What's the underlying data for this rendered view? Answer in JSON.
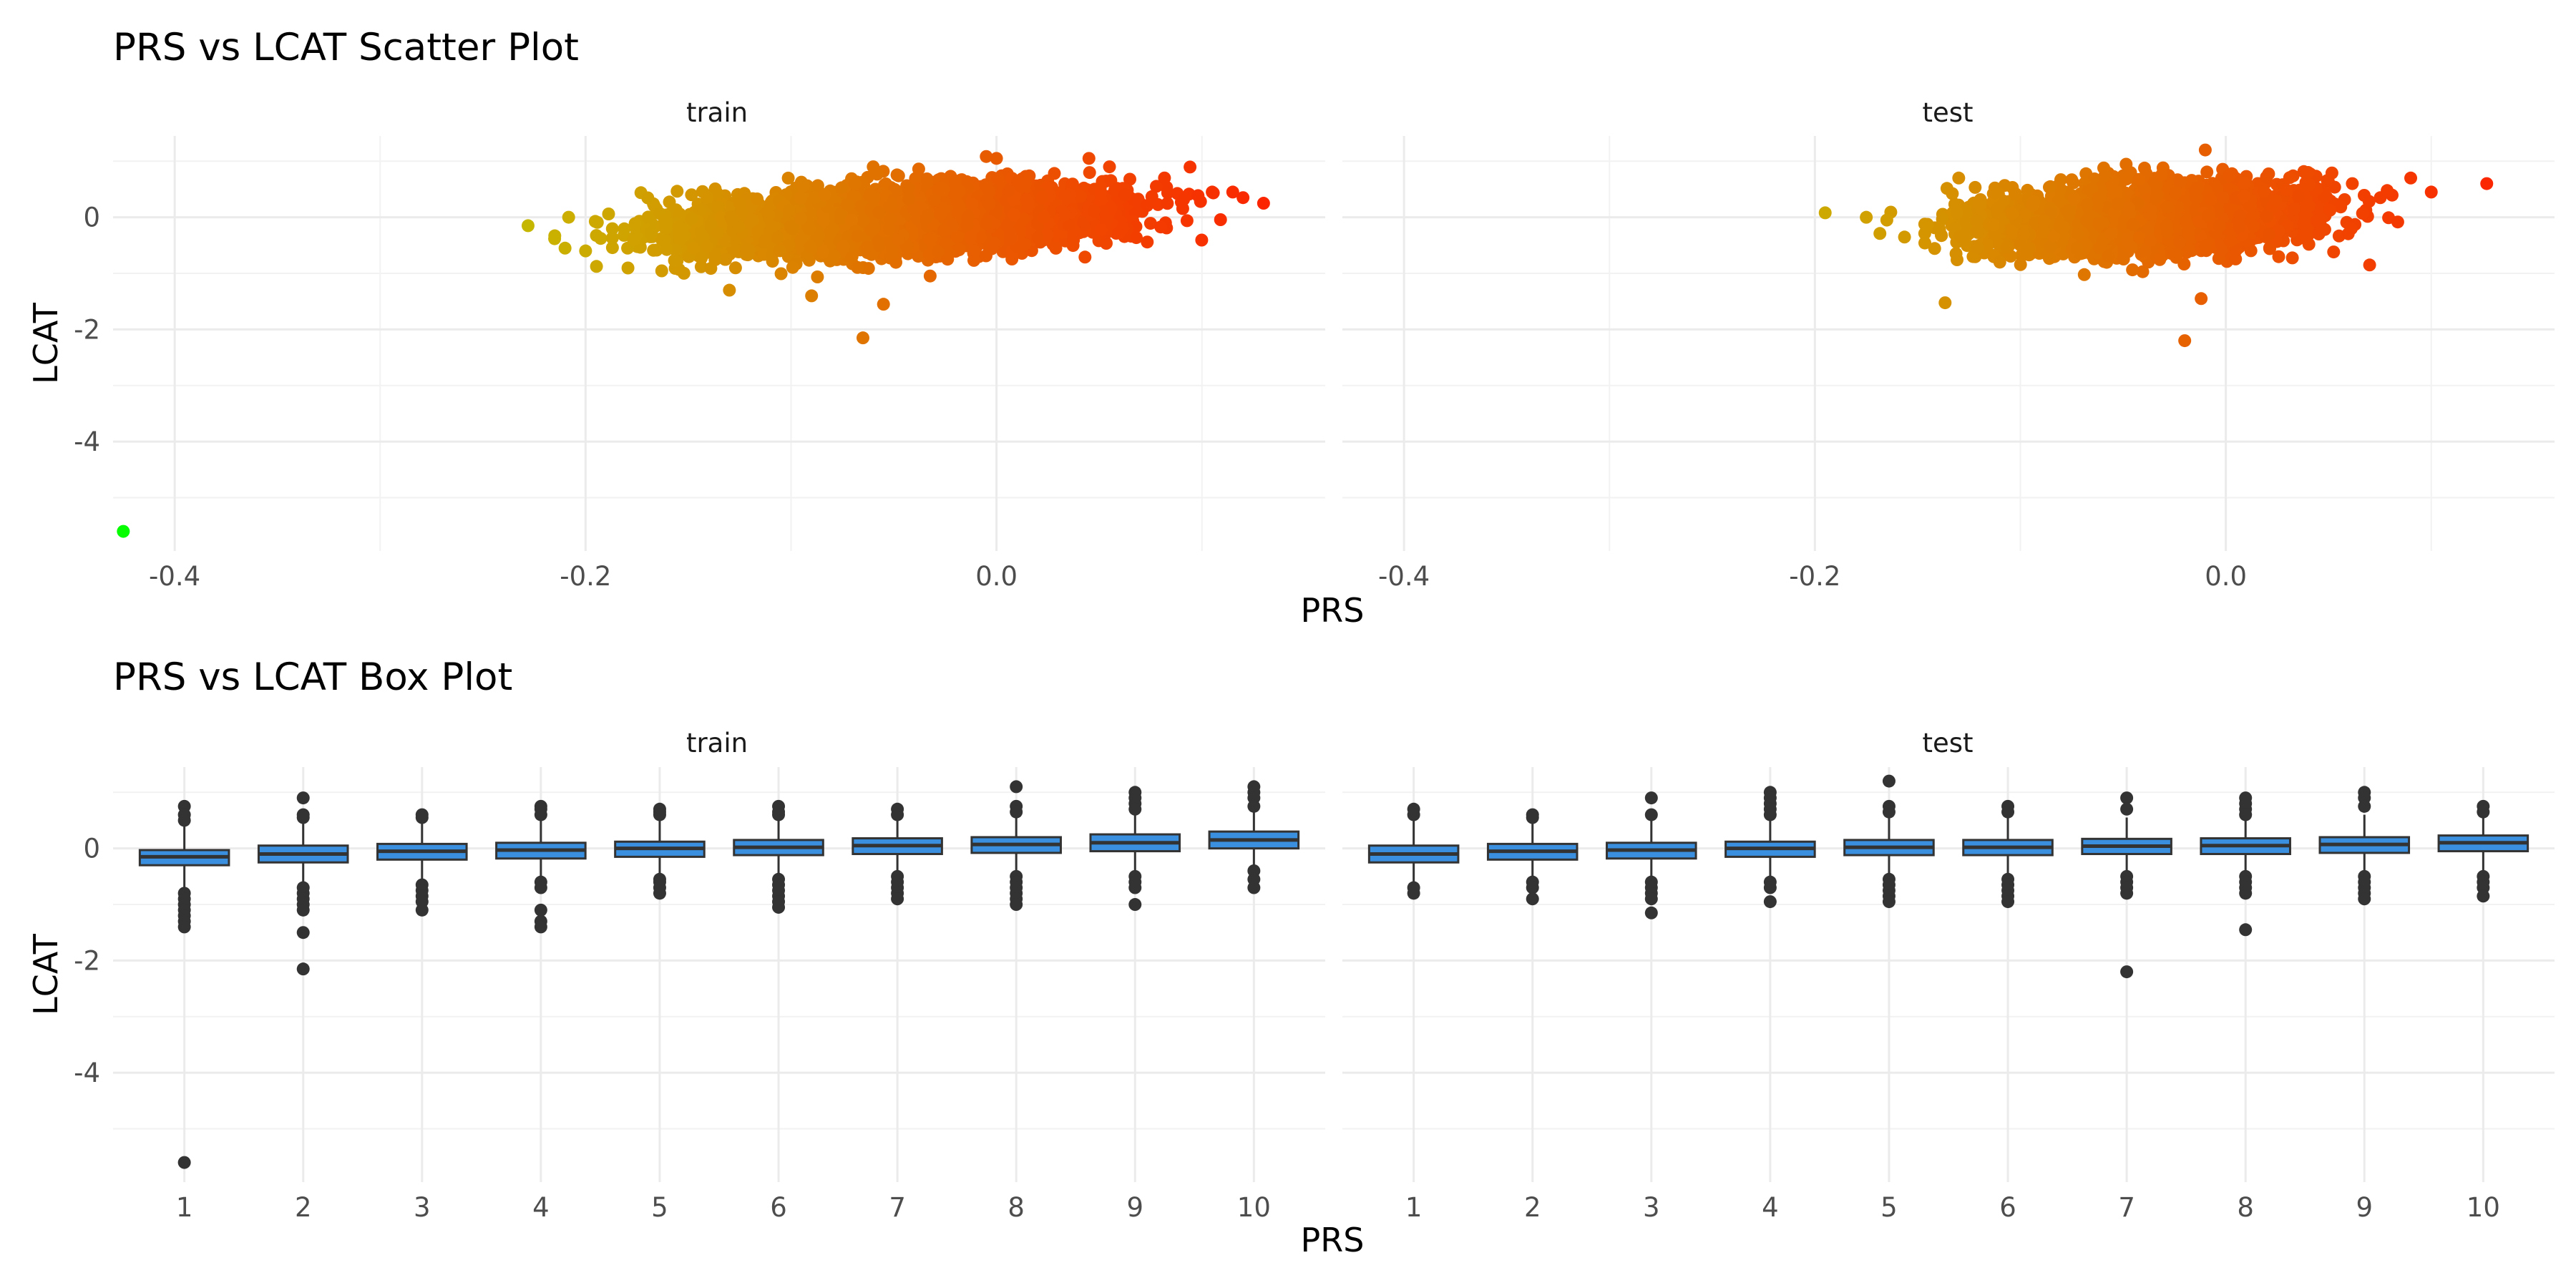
{
  "chart_data": [
    {
      "type": "scatter",
      "title": "PRS vs LCAT Scatter Plot",
      "xlabel": "PRS",
      "ylabel": "LCAT",
      "facets": [
        "train",
        "test"
      ],
      "xlim": [
        -0.43,
        0.16
      ],
      "ylim": [
        -5.95,
        1.45
      ],
      "x_ticks": [
        -0.4,
        -0.2,
        0.0
      ],
      "x_tick_labels": [
        "-0.4",
        "-0.2",
        "0.0"
      ],
      "y_ticks": [
        -4,
        -2,
        0
      ],
      "y_tick_labels": [
        "-4",
        "-2",
        "0"
      ],
      "grid": true,
      "color_scale": {
        "low": "#00ff00",
        "mid": "#c9b400",
        "high": "#ff1a00",
        "mapped_to": "PRS"
      },
      "series": [
        {
          "facet": "train",
          "cloud": {
            "x_range": [
              -0.23,
              0.13
            ],
            "y_center_at_x_min": -0.35,
            "y_center_at_x_max": 0.25,
            "y_spread": 0.28,
            "n": 3800
          },
          "points": [
            [
              -0.425,
              -5.6
            ],
            [
              -0.228,
              -0.15
            ],
            [
              -0.215,
              -0.33
            ],
            [
              -0.21,
              -0.55
            ],
            [
              -0.2,
              -0.6
            ],
            [
              -0.065,
              -2.15
            ],
            [
              -0.055,
              -1.55
            ],
            [
              -0.13,
              -1.3
            ],
            [
              -0.09,
              -1.4
            ],
            [
              0.0,
              1.05
            ],
            [
              0.045,
              1.05
            ],
            [
              0.055,
              0.9
            ],
            [
              -0.06,
              0.9
            ],
            [
              0.105,
              0.45
            ],
            [
              0.115,
              0.45
            ],
            [
              0.12,
              0.35
            ],
            [
              0.13,
              0.25
            ]
          ]
        },
        {
          "facet": "test",
          "cloud": {
            "x_range": [
              -0.18,
              0.1
            ],
            "y_center_at_x_min": -0.25,
            "y_center_at_x_max": 0.2,
            "y_spread": 0.28,
            "n": 3200
          },
          "points": [
            [
              -0.195,
              0.08
            ],
            [
              -0.175,
              0.0
            ],
            [
              -0.165,
              -0.05
            ],
            [
              -0.02,
              -2.2
            ],
            [
              -0.012,
              -1.45
            ],
            [
              -0.01,
              1.2
            ],
            [
              -0.12,
              0.25
            ],
            [
              -0.13,
              0.7
            ],
            [
              -0.11,
              -0.8
            ],
            [
              0.07,
              -0.85
            ],
            [
              0.04,
              0.8
            ],
            [
              0.09,
              0.7
            ],
            [
              0.1,
              0.45
            ],
            [
              0.127,
              0.6
            ]
          ]
        }
      ]
    },
    {
      "type": "box",
      "title": "PRS vs LCAT Box Plot",
      "xlabel": "PRS",
      "ylabel": "LCAT",
      "facets": [
        "train",
        "test"
      ],
      "categories": [
        "1",
        "2",
        "3",
        "4",
        "5",
        "6",
        "7",
        "8",
        "9",
        "10"
      ],
      "ylim": [
        -5.95,
        1.45
      ],
      "y_ticks": [
        -4,
        -2,
        0
      ],
      "y_tick_labels": [
        "-4",
        "-2",
        "0"
      ],
      "box_fill": "#3a8fde",
      "box_stroke": "#333333",
      "series": [
        {
          "facet": "train",
          "boxes": [
            {
              "q1": -0.3,
              "median": -0.15,
              "q3": -0.03,
              "lower": -0.7,
              "upper": 0.45,
              "outliers": [
                0.75,
                0.6,
                0.5,
                -0.8,
                -0.9,
                -1.0,
                -1.1,
                -1.2,
                -1.3,
                -1.4,
                -5.6
              ]
            },
            {
              "q1": -0.25,
              "median": -0.1,
              "q3": 0.05,
              "lower": -0.6,
              "upper": 0.5,
              "outliers": [
                0.9,
                0.6,
                0.55,
                -0.7,
                -0.8,
                -0.9,
                -1.0,
                -1.1,
                -1.5,
                -2.15
              ]
            },
            {
              "q1": -0.2,
              "median": -0.05,
              "q3": 0.08,
              "lower": -0.55,
              "upper": 0.5,
              "outliers": [
                0.6,
                0.55,
                -0.65,
                -0.75,
                -0.85,
                -0.95,
                -1.1
              ]
            },
            {
              "q1": -0.18,
              "median": -0.03,
              "q3": 0.1,
              "lower": -0.55,
              "upper": 0.55,
              "outliers": [
                0.75,
                0.7,
                0.6,
                -0.6,
                -0.7,
                -1.1,
                -1.3,
                -1.4
              ]
            },
            {
              "q1": -0.15,
              "median": 0.0,
              "q3": 0.12,
              "lower": -0.5,
              "upper": 0.55,
              "outliers": [
                0.7,
                0.65,
                0.6,
                -0.55,
                -0.6,
                -0.7,
                -0.8
              ]
            },
            {
              "q1": -0.12,
              "median": 0.02,
              "q3": 0.15,
              "lower": -0.5,
              "upper": 0.55,
              "outliers": [
                0.75,
                0.65,
                0.6,
                -0.55,
                -0.65,
                -0.75,
                -0.85,
                -0.95,
                -1.05
              ]
            },
            {
              "q1": -0.1,
              "median": 0.05,
              "q3": 0.18,
              "lower": -0.45,
              "upper": 0.55,
              "outliers": [
                0.7,
                0.6,
                -0.5,
                -0.6,
                -0.7,
                -0.8,
                -0.9
              ]
            },
            {
              "q1": -0.08,
              "median": 0.07,
              "q3": 0.2,
              "lower": -0.45,
              "upper": 0.6,
              "outliers": [
                1.1,
                0.75,
                0.65,
                -0.5,
                -0.6,
                -0.7,
                -0.8,
                -0.9,
                -1.0
              ]
            },
            {
              "q1": -0.05,
              "median": 0.1,
              "q3": 0.25,
              "lower": -0.4,
              "upper": 0.6,
              "outliers": [
                1.0,
                0.9,
                0.8,
                0.7,
                -0.5,
                -0.6,
                -0.7,
                -1.0
              ]
            },
            {
              "q1": 0.0,
              "median": 0.15,
              "q3": 0.3,
              "lower": -0.35,
              "upper": 0.65,
              "outliers": [
                1.1,
                1.0,
                0.9,
                0.75,
                -0.4,
                -0.55,
                -0.7
              ]
            }
          ]
        },
        {
          "facet": "test",
          "boxes": [
            {
              "q1": -0.25,
              "median": -0.1,
              "q3": 0.05,
              "lower": -0.65,
              "upper": 0.55,
              "outliers": [
                0.7,
                0.6,
                -0.7,
                -0.8
              ]
            },
            {
              "q1": -0.2,
              "median": -0.05,
              "q3": 0.08,
              "lower": -0.55,
              "upper": 0.5,
              "outliers": [
                0.6,
                0.55,
                -0.6,
                -0.7,
                -0.9
              ]
            },
            {
              "q1": -0.18,
              "median": -0.03,
              "q3": 0.1,
              "lower": -0.55,
              "upper": 0.55,
              "outliers": [
                0.9,
                0.6,
                -0.6,
                -0.7,
                -0.8,
                -0.9,
                -1.15
              ]
            },
            {
              "q1": -0.15,
              "median": 0.0,
              "q3": 0.12,
              "lower": -0.55,
              "upper": 0.55,
              "outliers": [
                1.0,
                0.9,
                0.8,
                0.7,
                0.6,
                -0.6,
                -0.7,
                -0.95
              ]
            },
            {
              "q1": -0.12,
              "median": 0.02,
              "q3": 0.15,
              "lower": -0.5,
              "upper": 0.6,
              "outliers": [
                1.2,
                0.75,
                0.65,
                -0.55,
                -0.65,
                -0.75,
                -0.85,
                -0.95
              ]
            },
            {
              "q1": -0.12,
              "median": 0.02,
              "q3": 0.15,
              "lower": -0.5,
              "upper": 0.55,
              "outliers": [
                0.75,
                0.65,
                -0.55,
                -0.65,
                -0.75,
                -0.85,
                -0.95
              ]
            },
            {
              "q1": -0.1,
              "median": 0.04,
              "q3": 0.17,
              "lower": -0.45,
              "upper": 0.55,
              "outliers": [
                0.9,
                0.7,
                -0.5,
                -0.6,
                -0.7,
                -0.8,
                -2.2
              ]
            },
            {
              "q1": -0.1,
              "median": 0.05,
              "q3": 0.18,
              "lower": -0.45,
              "upper": 0.55,
              "outliers": [
                0.9,
                0.8,
                0.7,
                0.6,
                -0.5,
                -0.6,
                -0.7,
                -0.8,
                -1.45
              ]
            },
            {
              "q1": -0.08,
              "median": 0.07,
              "q3": 0.2,
              "lower": -0.45,
              "upper": 0.6,
              "outliers": [
                1.0,
                0.9,
                0.75,
                -0.5,
                -0.6,
                -0.7,
                -0.8,
                -0.9
              ]
            },
            {
              "q1": -0.05,
              "median": 0.1,
              "q3": 0.23,
              "lower": -0.4,
              "upper": 0.6,
              "outliers": [
                0.75,
                0.65,
                -0.5,
                -0.6,
                -0.7,
                -0.85
              ]
            }
          ]
        }
      ]
    }
  ]
}
